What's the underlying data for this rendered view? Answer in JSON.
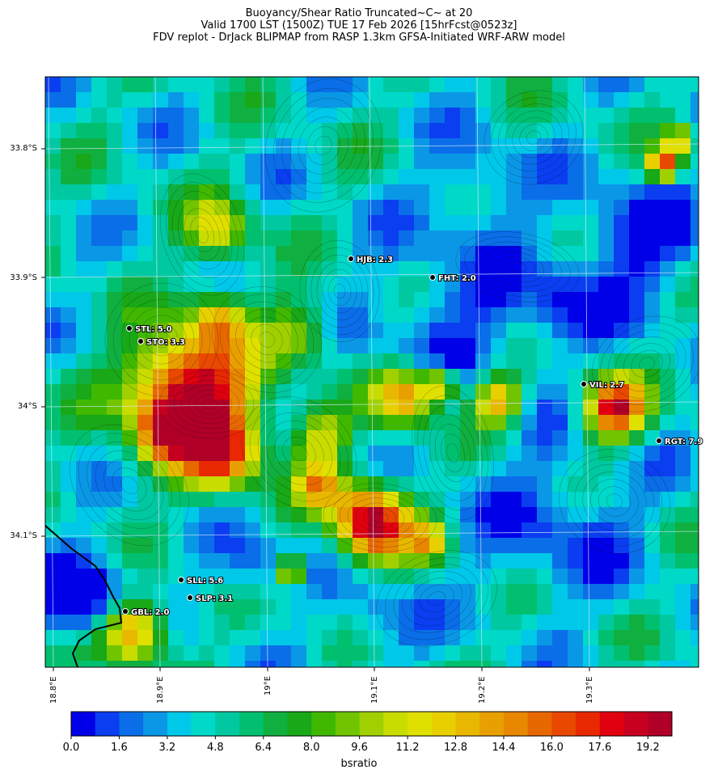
{
  "title": {
    "line1": "Buoyancy/Shear Ratio Truncated~C~    at 20",
    "line2": "Valid 1700 LST (1500Z) TUE 17 Feb 2026 [15hrFcst@0523z]",
    "line3": "FDV replot - DrJack BLIPMAP from RASP 1.3km GFSA-Initiated WRF-ARW model"
  },
  "map": {
    "lat_labels": [
      "33.8°S",
      "33.9°S",
      "34°S",
      "34.1°S"
    ],
    "lon_labels": [
      "18.8°E",
      "18.9°E",
      "19°E",
      "19.1°E",
      "19.2°E",
      "19.3°E"
    ],
    "stations": [
      {
        "name": "HJB: 2.3"
      },
      {
        "name": "FHT: 2.0"
      },
      {
        "name": "STL: 5.0"
      },
      {
        "name": "STO: 3.3"
      },
      {
        "name": "VIL: 2.7"
      },
      {
        "name": "RGT: 7.9"
      },
      {
        "name": "SLL: 5.6"
      },
      {
        "name": "SLP: 3.1"
      },
      {
        "name": "GBL: 2.0"
      }
    ]
  },
  "colorbar": {
    "label": "bsratio",
    "tick_labels": [
      "0.0",
      "1.6",
      "3.2",
      "4.8",
      "6.4",
      "8.0",
      "9.6",
      "11.2",
      "12.8",
      "14.4",
      "16.0",
      "17.6",
      "19.2"
    ],
    "colors": [
      "#0000e8",
      "#0a3ef0",
      "#0a6ee8",
      "#0a98e6",
      "#00c8e8",
      "#00d8c8",
      "#00c8a0",
      "#00c070",
      "#10b040",
      "#18a818",
      "#40b800",
      "#70c400",
      "#a0d000",
      "#c8dc00",
      "#e0e000",
      "#e8d000",
      "#e8b800",
      "#e8a000",
      "#e88800",
      "#e86800",
      "#e84800",
      "#e82800",
      "#e00010",
      "#c80020",
      "#b00028"
    ]
  },
  "chart_data": {
    "type": "heatmap",
    "variable": "bsratio",
    "colorbar_range": [
      0.0,
      20.0
    ],
    "stations": [
      {
        "code": "HJB",
        "value": 2.3
      },
      {
        "code": "FHT",
        "value": 2.0
      },
      {
        "code": "STL",
        "value": 5.0
      },
      {
        "code": "STO",
        "value": 3.3
      },
      {
        "code": "VIL",
        "value": 2.7
      },
      {
        "code": "RGT",
        "value": 7.9
      },
      {
        "code": "SLL",
        "value": 5.6
      },
      {
        "code": "SLP",
        "value": 3.1
      },
      {
        "code": "GBL",
        "value": 2.0
      }
    ]
  }
}
